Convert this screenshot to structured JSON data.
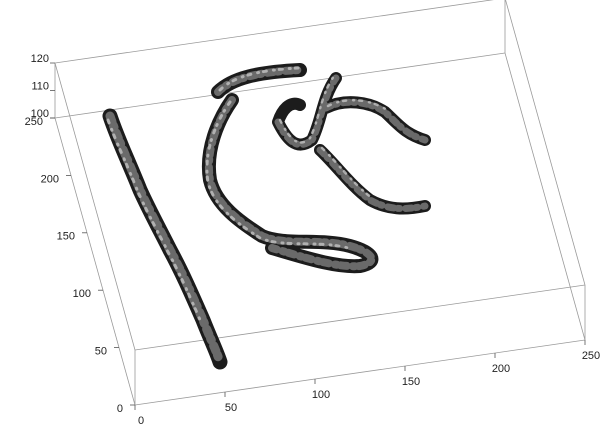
{
  "chart_data": {
    "type": "isosurface3d",
    "xlim": [
      0,
      250
    ],
    "xticks": [
      0,
      50,
      100,
      150,
      200,
      250
    ],
    "ylim": [
      0,
      250
    ],
    "yticks": [
      0,
      50,
      100,
      150,
      200,
      250
    ],
    "zlim": [
      100,
      120
    ],
    "zticks": [
      100,
      110,
      120
    ]
  }
}
